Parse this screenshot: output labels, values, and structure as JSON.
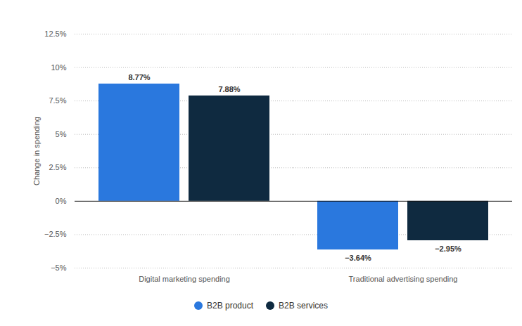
{
  "chart_data": {
    "type": "bar",
    "ylabel": "Change in spending",
    "categories": [
      "Digital marketing spending",
      "Traditional advertising spending"
    ],
    "series": [
      {
        "name": "B2B product",
        "color": "#2a78de",
        "values": [
          8.77,
          -3.64
        ],
        "value_labels": [
          "8.77%",
          "−3.64%"
        ]
      },
      {
        "name": "B2B services",
        "color": "#0f2a40",
        "values": [
          7.88,
          -2.95
        ],
        "value_labels": [
          "7.88%",
          "−2.95%"
        ]
      }
    ],
    "ylim": [
      -5,
      12.5
    ],
    "yticks": [
      {
        "value": -5,
        "label": "−5%"
      },
      {
        "value": -2.5,
        "label": "−2.5%"
      },
      {
        "value": 0,
        "label": "0%"
      },
      {
        "value": 2.5,
        "label": "2.5%"
      },
      {
        "value": 5,
        "label": "5%"
      },
      {
        "value": 7.5,
        "label": "7.5%"
      },
      {
        "value": 10,
        "label": "10%"
      },
      {
        "value": 12.5,
        "label": "12.5%"
      }
    ],
    "grid": true,
    "data_labels": true,
    "legend": "bottom"
  }
}
